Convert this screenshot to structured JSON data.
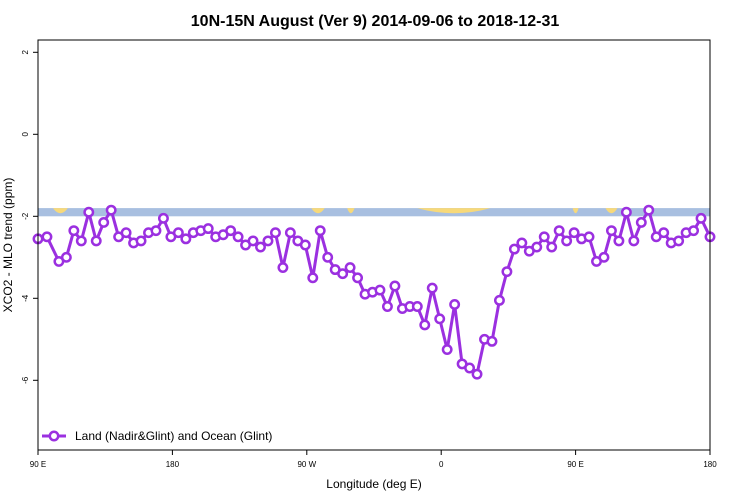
{
  "chart_data": {
    "type": "line",
    "title": "10N-15N August (Ver 9)   2014-09-06 to 2018-12-31",
    "xlabel": "Longitude (deg E)",
    "ylabel": "XCO2 - MLO trend (ppm)",
    "x_ticks": [
      {
        "value": 90,
        "label": "90 E"
      },
      {
        "value": 180,
        "label": "180"
      },
      {
        "value": 270,
        "label": "90 W"
      },
      {
        "value": 360,
        "label": "0"
      },
      {
        "value": 450,
        "label": "90 E"
      },
      {
        "value": 540,
        "label": "180"
      }
    ],
    "y_ticks": [
      {
        "value": -6,
        "label": "-6"
      },
      {
        "value": -4,
        "label": "-4"
      },
      {
        "value": -2,
        "label": "-2"
      },
      {
        "value": 0,
        "label": "0"
      },
      {
        "value": 2,
        "label": "2"
      }
    ],
    "xlim": [
      90,
      540
    ],
    "ylim": [
      -7.7,
      2.3
    ],
    "legend_position": "bottom-left",
    "land_band": {
      "y_range": [
        -2.0,
        -1.8
      ],
      "ocean_color": "#a8bfe0",
      "land_color": "#f7d97a",
      "land_segments": [
        [
          100,
          110
        ],
        [
          273,
          282
        ],
        [
          297,
          302
        ],
        [
          344,
          393
        ],
        [
          448,
          452
        ],
        [
          470,
          478
        ]
      ]
    },
    "series": [
      {
        "name": "Land (Nadir&Glint) and Ocean (Glint)",
        "color": "#9b30e0",
        "x": [
          90,
          96,
          104,
          109,
          114,
          119,
          124,
          129,
          134,
          139,
          144,
          149,
          154,
          159,
          164,
          169,
          174,
          179,
          184,
          189,
          194,
          199,
          204,
          209,
          214,
          219,
          224,
          229,
          234,
          239,
          244,
          249,
          254,
          259,
          264,
          269,
          274,
          279,
          284,
          289,
          294,
          299,
          304,
          309,
          314,
          319,
          324,
          329,
          334,
          339,
          344,
          349,
          354,
          359,
          364,
          369,
          374,
          379,
          384,
          389,
          394,
          399,
          404,
          409,
          414,
          419,
          424,
          429,
          434,
          439,
          444,
          449,
          454,
          459,
          464,
          469,
          474,
          479,
          484,
          489,
          494,
          499,
          504,
          509,
          514,
          519,
          524,
          529,
          534,
          540
        ],
        "y": [
          -2.55,
          -2.5,
          -3.1,
          -3.0,
          -2.35,
          -2.6,
          -1.9,
          -2.6,
          -2.15,
          -1.85,
          -2.5,
          -2.4,
          -2.65,
          -2.6,
          -2.4,
          -2.35,
          -2.05,
          -2.5,
          -2.4,
          -2.55,
          -2.4,
          -2.35,
          -2.3,
          -2.5,
          -2.45,
          -2.35,
          -2.5,
          -2.7,
          -2.6,
          -2.75,
          -2.6,
          -2.4,
          -3.25,
          -2.4,
          -2.6,
          -2.7,
          -3.5,
          -2.35,
          -3.0,
          -3.3,
          -3.4,
          -3.25,
          -3.5,
          -3.9,
          -3.85,
          -3.8,
          -4.2,
          -3.7,
          -4.25,
          -4.2,
          -4.2,
          -4.65,
          -3.75,
          -4.5,
          -5.25,
          -4.15,
          -5.6,
          -5.7,
          -5.85,
          -5.0,
          -5.05,
          -4.05,
          -3.35,
          -2.8,
          -2.65,
          -2.85,
          -2.75,
          -2.5,
          -2.75,
          -2.35,
          -2.6,
          -2.4,
          -2.55,
          -2.5,
          -3.1,
          -3.0,
          -2.35,
          -2.6,
          -1.9,
          -2.6,
          -2.15,
          -1.85,
          -2.5,
          -2.4,
          -2.65,
          -2.6,
          -2.4,
          -2.35,
          -2.05,
          -2.5
        ]
      }
    ]
  }
}
